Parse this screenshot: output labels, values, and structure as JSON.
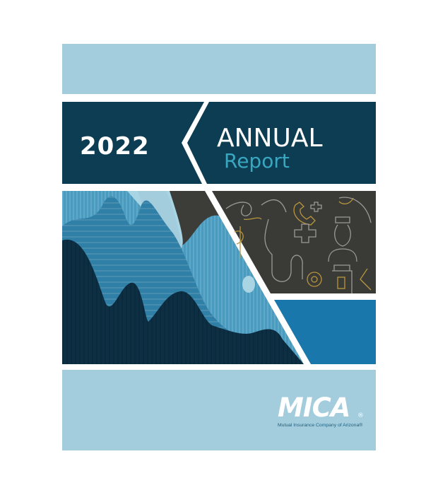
{
  "cover": {
    "year": "2022",
    "title_line1": "ANNUAL",
    "title_line2": "Report",
    "logo_text": "MICA",
    "logo_mark": "®",
    "tagline": "Mutual Insurance Company of Arizona®"
  },
  "colors": {
    "light_band": "#a3cddc",
    "dark_band": "#0c3d52",
    "accent_text": "#3aa7c0",
    "icon_panel": "#3a3a36",
    "blue_panel": "#1a77ab"
  },
  "icons": [
    "caduceus-icon",
    "stethoscope-icon",
    "phone-icon",
    "medical-cross-icon",
    "nurse-icon",
    "pill-bottle-icon"
  ]
}
